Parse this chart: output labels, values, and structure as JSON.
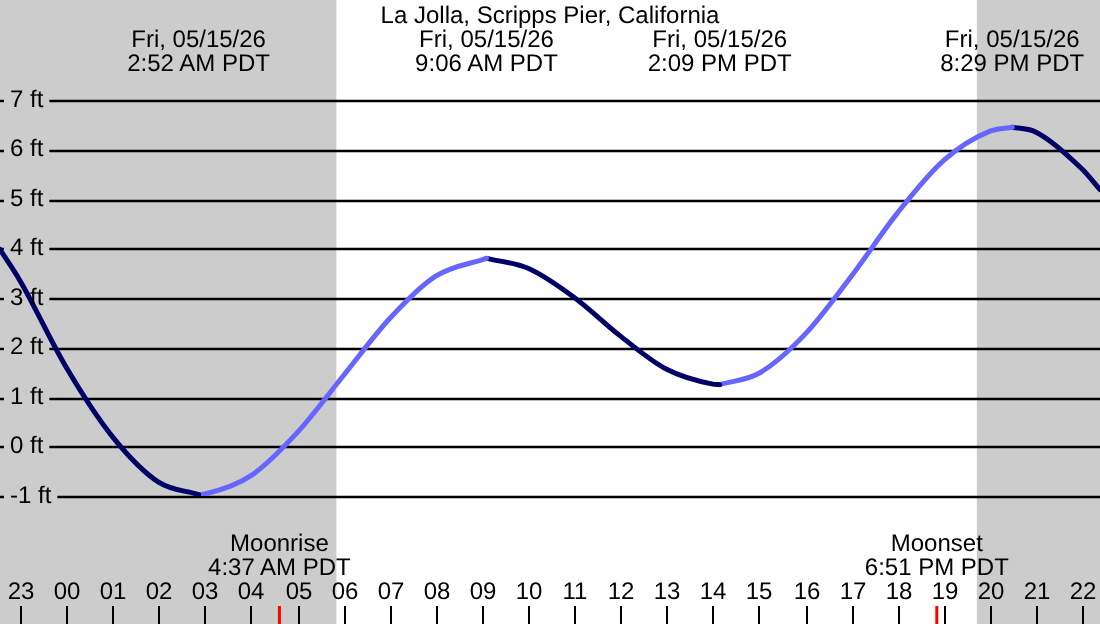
{
  "chart_data": {
    "type": "line",
    "title": "La Jolla, Scripps Pier, California",
    "series": [
      {
        "color": "#000066",
        "x": [
          "--05-14T22:34",
          "--05-14T23:00",
          "--05-15T00:00",
          "--05-15T01:00",
          "--05-15T02:00",
          "--05-15T02:52"
        ],
        "values": [
          3.98,
          3.35,
          1.6,
          0.2,
          -0.72,
          -0.97
        ]
      },
      {
        "color": "#6666ff",
        "x": [
          "--05-15T02:52",
          "--05-15T03:00",
          "--05-15T04:00",
          "--05-15T05:00",
          "--05-15T06:00",
          "--05-15T07:00",
          "--05-15T08:00",
          "--05-15T09:06"
        ],
        "values": [
          -0.97,
          -0.96,
          -0.59,
          0.28,
          1.43,
          2.58,
          3.44,
          3.8
        ]
      },
      {
        "color": "#000066",
        "x": [
          "--05-15T09:06",
          "--05-15T10:00",
          "--05-15T11:00",
          "--05-15T12:00",
          "--05-15T13:00",
          "--05-15T14:00",
          "--05-15T14:09"
        ],
        "values": [
          3.8,
          3.6,
          3.01,
          2.23,
          1.56,
          1.26,
          1.25
        ]
      },
      {
        "color": "#6666ff",
        "x": [
          "--05-15T14:09",
          "--05-15T15:00",
          "--05-15T16:00",
          "--05-15T17:00",
          "--05-15T18:00",
          "--05-15T19:00",
          "--05-15T20:00",
          "--05-15T20:29"
        ],
        "values": [
          1.25,
          1.48,
          2.27,
          3.44,
          4.72,
          5.78,
          6.37,
          6.45
        ]
      },
      {
        "color": "#000066",
        "x": [
          "--05-15T20:29",
          "--05-15T21:00",
          "--05-15T22:00",
          "--05-15T22:23"
        ],
        "values": [
          6.45,
          6.35,
          5.6,
          5.19
        ]
      }
    ],
    "annotations": [
      "Fri, 05/15/26\n2:52 AM PDT",
      "Fri, 05/15/26\n9:06 AM PDT",
      "Fri, 05/15/26\n2:09 PM PDT",
      "Fri, 05/15/26\n8:29 PM PDT"
    ],
    "ref_lines": [
      {
        "axis": "x",
        "value": "--05-15T04:37",
        "label": "Moonrise\n4:37 AM PDT",
        "color": "#ff0000"
      },
      {
        "axis": "x",
        "value": "--05-15T18:51",
        "label": "Moonset\n6:51 PM PDT",
        "color": "#ff0000"
      }
    ],
    "bands": [
      {
        "axis": "x",
        "from": "--05-14T22:34",
        "to": "--05-15T05:51",
        "color": "#cccccc"
      },
      {
        "axis": "x",
        "from": "--05-15T19:43",
        "to": "--05-15T22:23",
        "color": "#cccccc"
      }
    ],
    "xlim": [
      "--05-14T22:34",
      "--05-15T22:23"
    ],
    "xticks": [
      {
        "value": "--05-14T23:00",
        "label": "23"
      },
      {
        "value": "--05-15T00:00",
        "label": "00"
      },
      {
        "value": "--05-15T01:00",
        "label": "01"
      },
      {
        "value": "--05-15T02:00",
        "label": "02"
      },
      {
        "value": "--05-15T03:00",
        "label": "03"
      },
      {
        "value": "--05-15T04:00",
        "label": "04"
      },
      {
        "value": "--05-15T05:00",
        "label": "05"
      },
      {
        "value": "--05-15T06:00",
        "label": "06"
      },
      {
        "value": "--05-15T07:00",
        "label": "07"
      },
      {
        "value": "--05-15T08:00",
        "label": "08"
      },
      {
        "value": "--05-15T09:00",
        "label": "09"
      },
      {
        "value": "--05-15T10:00",
        "label": "10"
      },
      {
        "value": "--05-15T11:00",
        "label": "11"
      },
      {
        "value": "--05-15T12:00",
        "label": "12"
      },
      {
        "value": "--05-15T13:00",
        "label": "13"
      },
      {
        "value": "--05-15T14:00",
        "label": "14"
      },
      {
        "value": "--05-15T15:00",
        "label": "15"
      },
      {
        "value": "--05-15T16:00",
        "label": "16"
      },
      {
        "value": "--05-15T17:00",
        "label": "17"
      },
      {
        "value": "--05-15T18:00",
        "label": "18"
      },
      {
        "value": "--05-15T19:00",
        "label": "19"
      },
      {
        "value": "--05-15T20:00",
        "label": "20"
      },
      {
        "value": "--05-15T21:00",
        "label": "21"
      },
      {
        "value": "--05-15T22:00",
        "label": "22"
      }
    ],
    "ylim": [
      -1,
      7
    ],
    "yticks": [
      {
        "value": -1,
        "label": "-1 ft"
      },
      {
        "value": 0,
        "label": "0 ft"
      },
      {
        "value": 1,
        "label": "1 ft"
      },
      {
        "value": 2,
        "label": "2 ft"
      },
      {
        "value": 3,
        "label": "3 ft"
      },
      {
        "value": 4,
        "label": "4 ft"
      },
      {
        "value": 5,
        "label": "5 ft"
      },
      {
        "value": 6,
        "label": "6 ft"
      },
      {
        "value": 7,
        "label": "7 ft"
      }
    ],
    "grid": "y",
    "legend": false,
    "marker": "none",
    "line_style": "solid"
  }
}
